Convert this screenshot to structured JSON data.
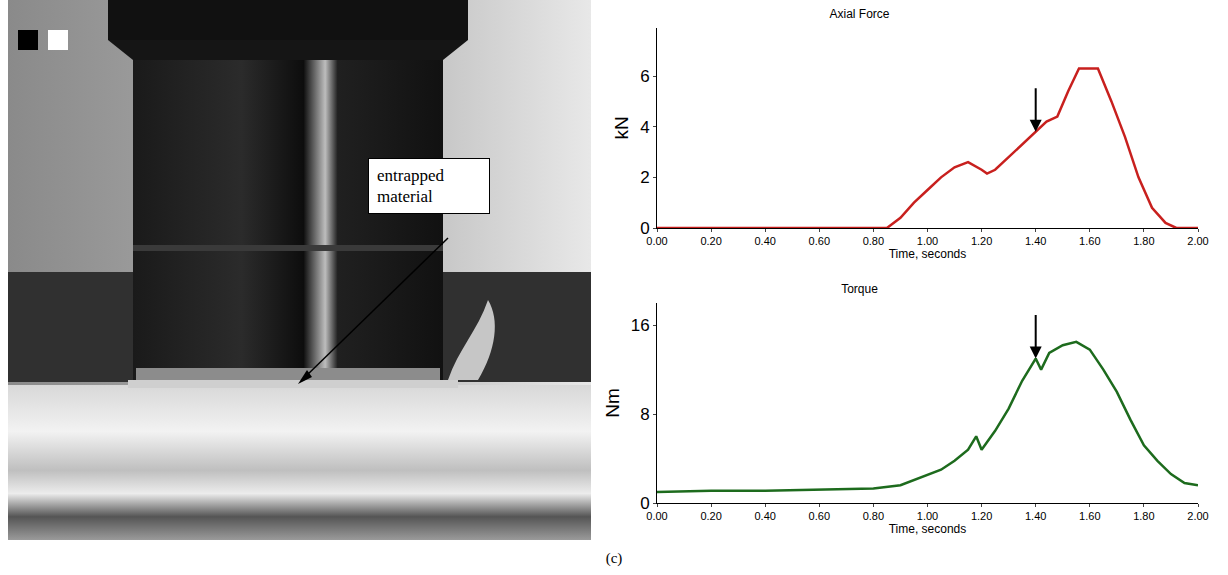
{
  "chart_data": [
    {
      "type": "line",
      "title": "Axial Force",
      "x_label": "Time, seconds",
      "y_label": "kN",
      "color": "#c8201e",
      "x": [
        0,
        0.2,
        0.4,
        0.6,
        0.8,
        0.85,
        0.9,
        0.95,
        1.0,
        1.05,
        1.1,
        1.15,
        1.2,
        1.22,
        1.25,
        1.3,
        1.35,
        1.4,
        1.44,
        1.48,
        1.52,
        1.56,
        1.6,
        1.63,
        1.68,
        1.73,
        1.78,
        1.83,
        1.88,
        1.92,
        2.0
      ],
      "values": [
        0,
        0,
        0,
        0,
        0,
        0,
        0.4,
        1.0,
        1.5,
        2.0,
        2.4,
        2.6,
        2.3,
        2.15,
        2.3,
        2.8,
        3.3,
        3.8,
        4.2,
        4.4,
        5.4,
        6.3,
        6.3,
        6.3,
        5.0,
        3.6,
        2.0,
        0.8,
        0.2,
        0,
        0
      ],
      "xlim": [
        0,
        2
      ],
      "xticks": [
        {
          "value": 0,
          "label": "0.00"
        },
        {
          "value": 0.2,
          "label": "0.20"
        },
        {
          "value": 0.4,
          "label": "0.40"
        },
        {
          "value": 0.6,
          "label": "0.60"
        },
        {
          "value": 0.8,
          "label": "0.80"
        },
        {
          "value": 1.0,
          "label": "1.00"
        },
        {
          "value": 1.2,
          "label": "1.20"
        },
        {
          "value": 1.4,
          "label": "1.40"
        },
        {
          "value": 1.6,
          "label": "1.60"
        },
        {
          "value": 1.8,
          "label": "1.80"
        },
        {
          "value": 2.0,
          "label": "2.00"
        }
      ],
      "ylim": [
        0,
        7.9
      ],
      "yticks": [
        0,
        2,
        4,
        6
      ],
      "grid": false,
      "arrow_x": 1.4
    },
    {
      "type": "line",
      "title": "Torque",
      "x_label": "Time, seconds",
      "y_label": "Nm",
      "color": "#1d6b1d",
      "x": [
        0,
        0.2,
        0.4,
        0.6,
        0.8,
        0.9,
        1.0,
        1.05,
        1.1,
        1.15,
        1.18,
        1.2,
        1.25,
        1.3,
        1.35,
        1.4,
        1.42,
        1.45,
        1.5,
        1.55,
        1.6,
        1.65,
        1.7,
        1.75,
        1.8,
        1.85,
        1.9,
        1.95,
        2.0
      ],
      "values": [
        1.0,
        1.1,
        1.1,
        1.2,
        1.3,
        1.6,
        2.5,
        3.0,
        3.8,
        4.8,
        6.0,
        4.8,
        6.5,
        8.5,
        11,
        13,
        12,
        13.5,
        14.2,
        14.5,
        13.8,
        12,
        10,
        7.5,
        5.2,
        3.8,
        2.6,
        1.8,
        1.6
      ],
      "xlim": [
        0,
        2
      ],
      "xticks": [
        {
          "value": 0,
          "label": "0.00"
        },
        {
          "value": 0.2,
          "label": "0.20"
        },
        {
          "value": 0.4,
          "label": "0.40"
        },
        {
          "value": 0.6,
          "label": "0.60"
        },
        {
          "value": 0.8,
          "label": "0.80"
        },
        {
          "value": 1.0,
          "label": "1.00"
        },
        {
          "value": 1.2,
          "label": "1.20"
        },
        {
          "value": 1.4,
          "label": "1.40"
        },
        {
          "value": 1.6,
          "label": "1.60"
        },
        {
          "value": 1.8,
          "label": "1.80"
        },
        {
          "value": 2.0,
          "label": "2.00"
        }
      ],
      "ylim": [
        0,
        18
      ],
      "yticks": [
        0,
        8,
        16
      ],
      "grid": false,
      "arrow_x": 1.4
    }
  ],
  "photo": {
    "annotation": "entrapped material"
  },
  "caption": "(c)"
}
